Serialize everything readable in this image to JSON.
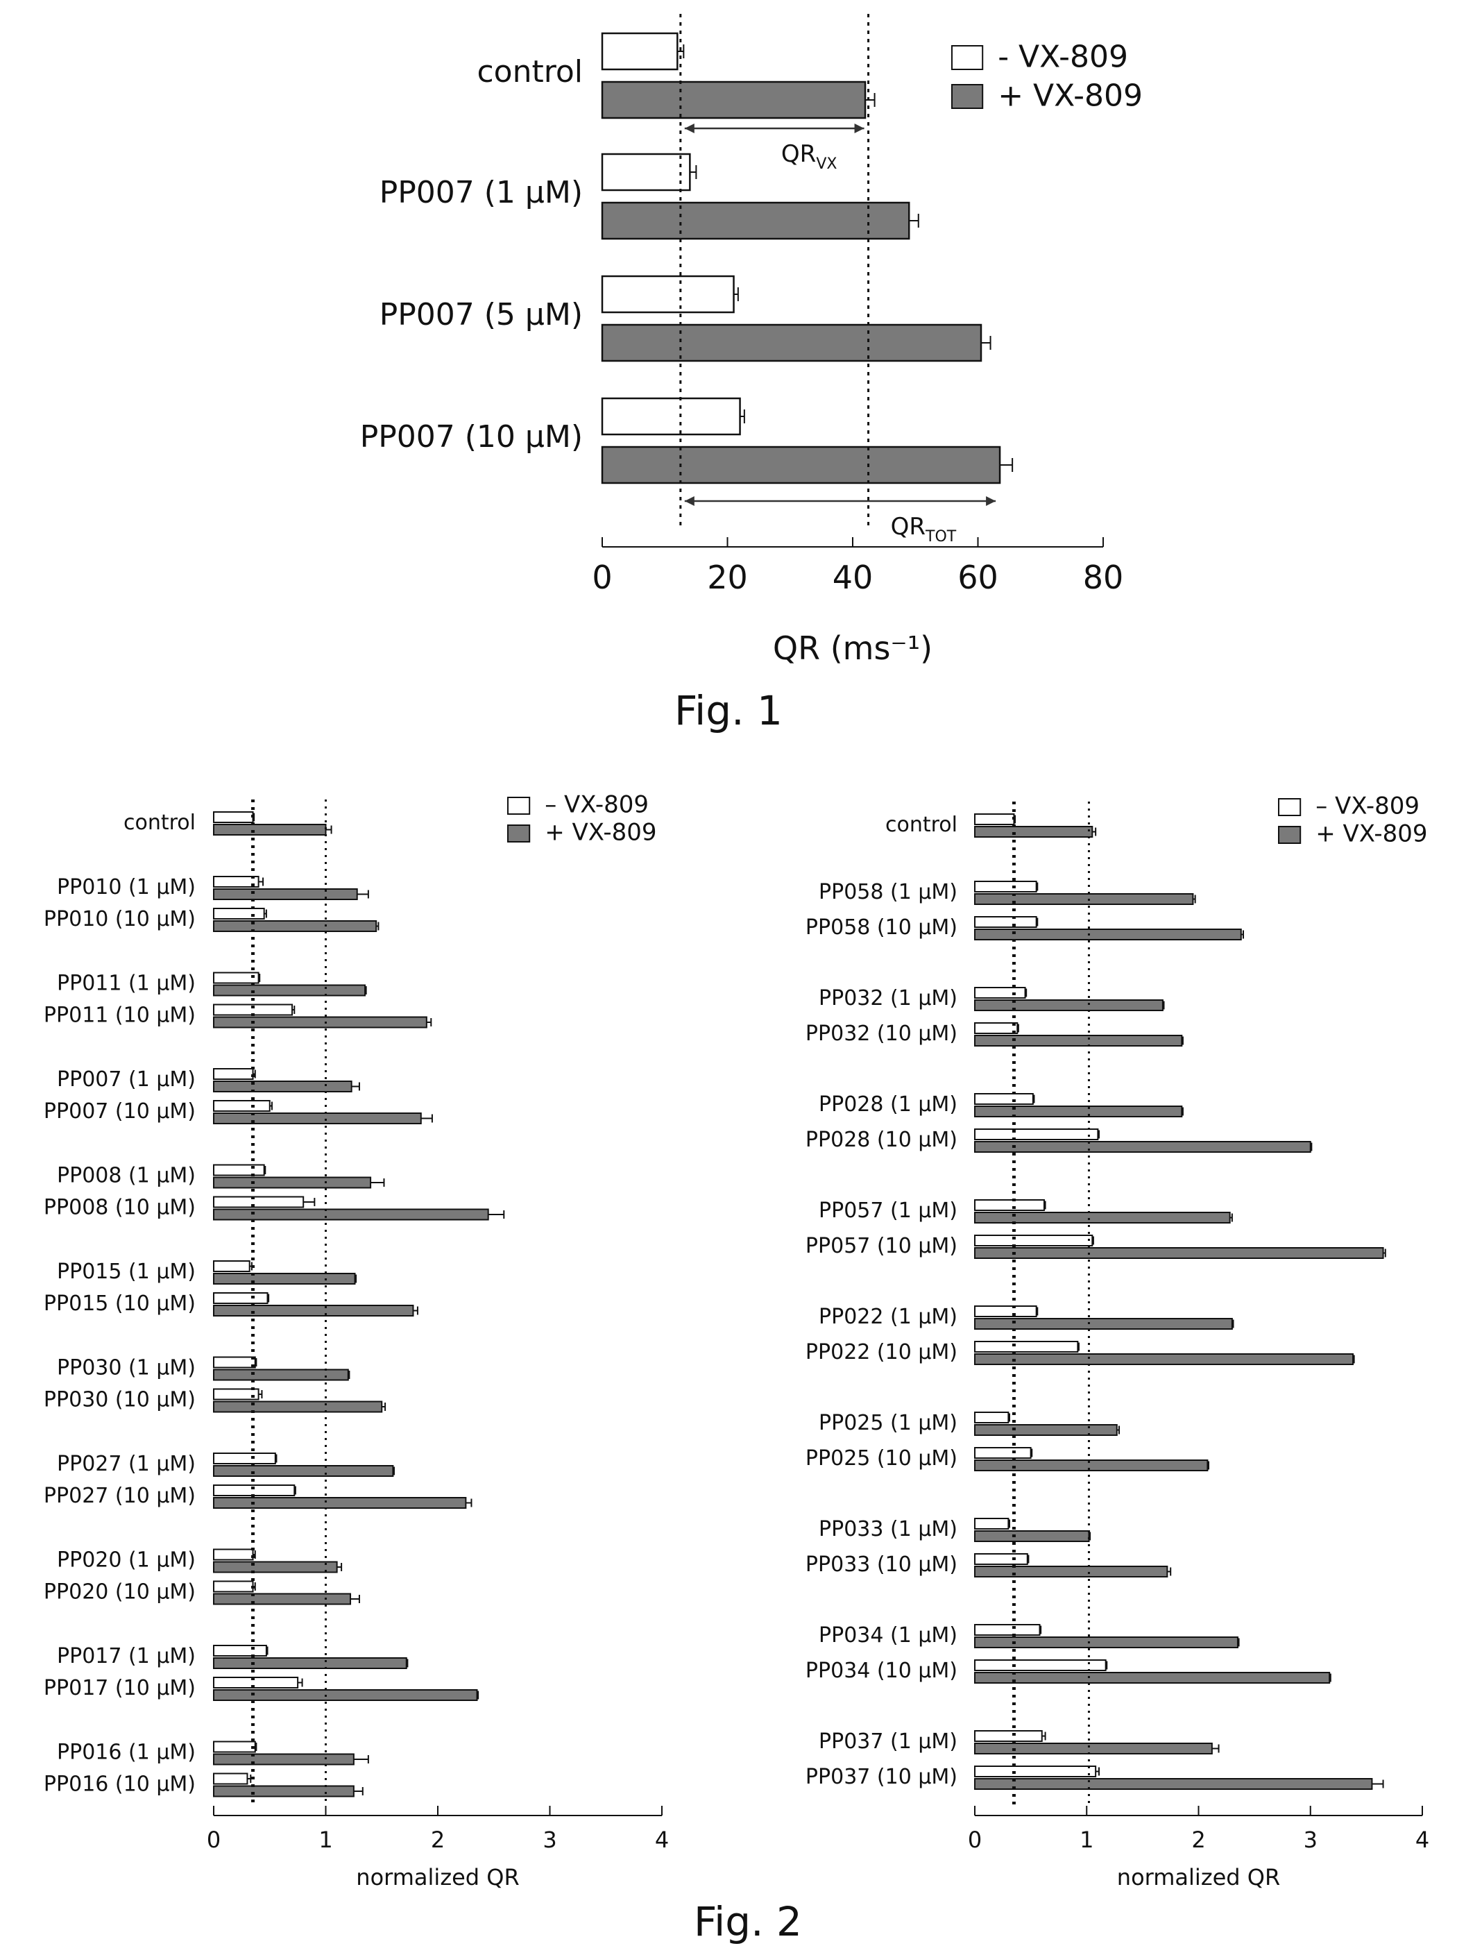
{
  "colors": {
    "minus": "#ffffff",
    "plus": "#7a7a7a",
    "stroke": "#111111"
  },
  "captions": {
    "fig1": "Fig. 1",
    "fig2": "Fig. 2"
  },
  "chart_data": [
    {
      "type": "bar",
      "orientation": "horizontal",
      "categories": [
        "control",
        "PP007 (1 μM)",
        "PP007 (5 μM)",
        "PP007 (10 μM)"
      ],
      "series": [
        {
          "name": "- VX-809",
          "values": [
            12,
            14,
            21,
            22
          ],
          "errors": [
            1,
            1,
            0.7,
            0.7
          ]
        },
        {
          "name": "+ VX-809",
          "values": [
            42,
            49,
            60.5,
            63.5
          ],
          "errors": [
            1.5,
            1.5,
            1.5,
            2
          ]
        }
      ],
      "xlabel": "QR (ms⁻¹)",
      "xlim": [
        0,
        80
      ],
      "xticks": [
        0,
        20,
        40,
        60,
        80
      ],
      "reference_lines": [
        12.5,
        42.5
      ],
      "annotations": [
        {
          "label": "QRVX",
          "main": "QR",
          "sub": "VX",
          "from": 12.5,
          "to": 42.5
        },
        {
          "label": "QRTOT",
          "main": "QR",
          "sub": "TOT",
          "from": 12.5,
          "to": 63.5
        }
      ],
      "legend": "top-right"
    },
    {
      "type": "bar",
      "orientation": "horizontal",
      "groups": [
        [
          "control"
        ],
        [
          "PP010 (1 μM)",
          "PP010 (10 μM)"
        ],
        [
          "PP011 (1 μM)",
          "PP011 (10 μM)"
        ],
        [
          "PP007 (1 μM)",
          "PP007 (10 μM)"
        ],
        [
          "PP008 (1 μM)",
          "PP008 (10 μM)"
        ],
        [
          "PP015 (1 μM)",
          "PP015 (10 μM)"
        ],
        [
          "PP030 (1 μM)",
          "PP030 (10 μM)"
        ],
        [
          "PP027 (1 μM)",
          "PP027 (10 μM)"
        ],
        [
          "PP020 (1 μM)",
          "PP020 (10 μM)"
        ],
        [
          "PP017 (1 μM)",
          "PP017 (10 μM)"
        ],
        [
          "PP016 (1 μM)",
          "PP016 (10 μM)"
        ]
      ],
      "series": [
        {
          "name": "– VX-809",
          "values": [
            0.35,
            0.4,
            0.45,
            0.4,
            0.7,
            0.35,
            0.5,
            0.45,
            0.8,
            0.32,
            0.48,
            0.37,
            0.4,
            0.55,
            0.72,
            0.35,
            0.35,
            0.47,
            0.75,
            0.37,
            0.3
          ],
          "errors": [
            0.01,
            0.04,
            0.02,
            0.01,
            0.02,
            0.02,
            0.02,
            0.01,
            0.1,
            0.02,
            0.01,
            0.01,
            0.03,
            0.01,
            0.01,
            0.02,
            0.02,
            0.01,
            0.04,
            0.01,
            0.03
          ]
        },
        {
          "name": "+ VX-809",
          "values": [
            1.0,
            1.28,
            1.45,
            1.35,
            1.9,
            1.23,
            1.85,
            1.4,
            2.45,
            1.26,
            1.78,
            1.2,
            1.5,
            1.6,
            2.25,
            1.1,
            1.22,
            1.72,
            2.35,
            1.25,
            1.25
          ],
          "errors": [
            0.05,
            0.1,
            0.02,
            0.01,
            0.04,
            0.07,
            0.1,
            0.12,
            0.14,
            0.01,
            0.04,
            0.01,
            0.03,
            0.01,
            0.05,
            0.04,
            0.08,
            0.01,
            0.01,
            0.13,
            0.08
          ]
        }
      ],
      "xlabel": "normalized QR",
      "xlim": [
        0,
        4
      ],
      "xticks": [
        0,
        1,
        2,
        3,
        4
      ],
      "reference_lines": [
        0.35,
        1.0
      ],
      "legend": "top-right"
    },
    {
      "type": "bar",
      "orientation": "horizontal",
      "groups": [
        [
          "control"
        ],
        [
          "PP058 (1 μM)",
          "PP058 (10 μM)"
        ],
        [
          "PP032 (1 μM)",
          "PP032 (10 μM)"
        ],
        [
          "PP028 (1 μM)",
          "PP028 (10 μM)"
        ],
        [
          "PP057 (1 μM)",
          "PP057 (10 μM)"
        ],
        [
          "PP022 (1 μM)",
          "PP022 (10 μM)"
        ],
        [
          "PP025 (1 μM)",
          "PP025 (10 μM)"
        ],
        [
          "PP033 (1 μM)",
          "PP033 (10 μM)"
        ],
        [
          "PP034 (1 μM)",
          "PP034 (10 μM)"
        ],
        [
          "PP037 (1 μM)",
          "PP037 (10 μM)"
        ]
      ],
      "series": [
        {
          "name": "– VX-809",
          "values": [
            0.35,
            0.55,
            0.55,
            0.45,
            0.38,
            0.52,
            1.1,
            0.62,
            1.05,
            0.55,
            0.92,
            0.3,
            0.5,
            0.3,
            0.47,
            0.58,
            1.17,
            0.6,
            1.08
          ],
          "errors": [
            0.01,
            0.01,
            0.01,
            0.01,
            0.01,
            0.01,
            0.01,
            0.01,
            0.01,
            0.01,
            0.01,
            0.01,
            0.01,
            0.01,
            0.01,
            0.01,
            0.01,
            0.03,
            0.03
          ]
        },
        {
          "name": "+ VX-809",
          "values": [
            1.05,
            1.95,
            2.38,
            1.68,
            1.85,
            1.85,
            3.0,
            2.28,
            3.65,
            2.3,
            3.38,
            1.27,
            2.08,
            1.02,
            1.72,
            2.35,
            3.17,
            2.12,
            3.55
          ],
          "errors": [
            0.03,
            0.02,
            0.02,
            0.01,
            0.01,
            0.01,
            0.01,
            0.02,
            0.02,
            0.01,
            0.01,
            0.02,
            0.01,
            0.01,
            0.03,
            0.01,
            0.01,
            0.06,
            0.1
          ]
        }
      ],
      "xlabel": "normalized QR",
      "xlim": [
        0,
        4
      ],
      "xticks": [
        0,
        1,
        2,
        3,
        4
      ],
      "reference_lines": [
        0.35,
        1.02
      ],
      "legend": "top-right"
    }
  ]
}
